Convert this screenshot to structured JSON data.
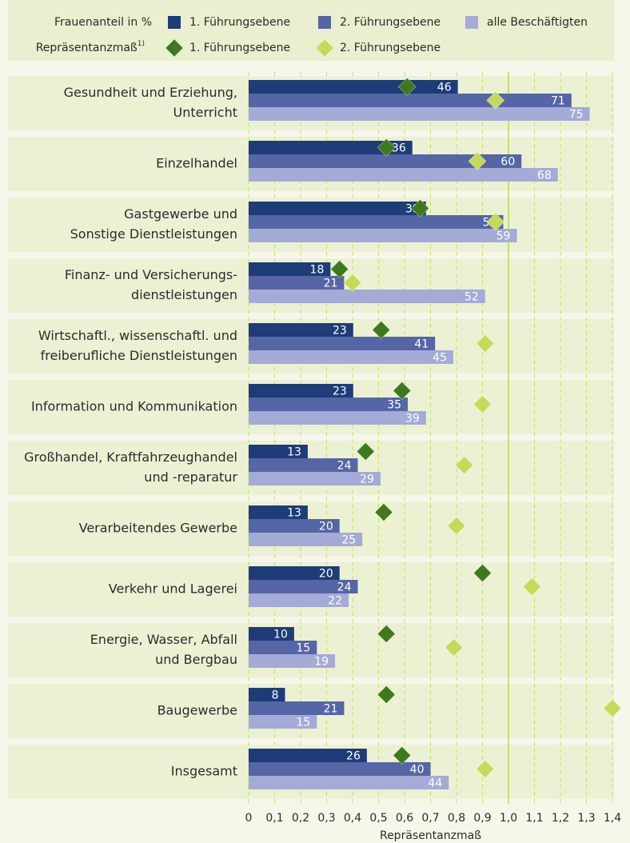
{
  "chart_data": {
    "type": "bar",
    "orientation": "horizontal",
    "legend_groups": [
      {
        "label": "Frauenanteil in %"
      },
      {
        "label": "Repräsentanzmaß",
        "note": "1)"
      }
    ],
    "categories": [
      [
        "Gesundheit und Erziehung,",
        "Unterricht"
      ],
      [
        "Einzelhandel"
      ],
      [
        "Gastgewerbe und",
        "Sonstige Dienstleistungen"
      ],
      [
        "Finanz- und Versicherungs-",
        "dienstleistungen"
      ],
      [
        "Wirtschaftl., wissenschaftl. und",
        "freiberufliche Dienstleistungen"
      ],
      [
        "Information und Kommunikation"
      ],
      [
        "Großhandel, Kraftfahrzeughandel",
        "und -reparatur"
      ],
      [
        "Verarbeitendes Gewerbe"
      ],
      [
        "Verkehr und Lagerei"
      ],
      [
        "Energie, Wasser, Abfall",
        "und Bergbau"
      ],
      [
        "Baugewerbe"
      ],
      [
        "Insgesamt"
      ]
    ],
    "series": [
      {
        "name": "1. Führungsebene",
        "color": "#1d3c78",
        "axis": "x2",
        "values": [
          46,
          36,
          39,
          18,
          23,
          23,
          13,
          13,
          20,
          10,
          8,
          26
        ]
      },
      {
        "name": "2. Führungsebene",
        "color": "#5565a6",
        "axis": "x2",
        "values": [
          71,
          60,
          56,
          21,
          41,
          35,
          24,
          20,
          24,
          15,
          21,
          40
        ]
      },
      {
        "name": "alle Beschäftigten",
        "color": "#a4abd6",
        "axis": "x2",
        "values": [
          75,
          68,
          59,
          52,
          45,
          39,
          29,
          25,
          22,
          19,
          15,
          44
        ]
      },
      {
        "name": "1. Führungsebene",
        "color": "#3e7a1c",
        "marker": "diamond",
        "values": [
          0.61,
          0.53,
          0.66,
          0.35,
          0.51,
          0.59,
          0.45,
          0.52,
          0.9,
          0.53,
          0.53,
          0.59
        ]
      },
      {
        "name": "2. Führungsebene",
        "color": "#c4db5a",
        "marker": "diamond",
        "values": [
          0.95,
          0.88,
          0.95,
          0.4,
          0.91,
          0.9,
          0.83,
          0.8,
          1.09,
          0.79,
          1.4,
          0.91
        ]
      }
    ],
    "xlabel": "Repräsentanzmaß",
    "xlim": [
      0,
      1.4
    ],
    "xticks": [
      0,
      {
        "value": 0.1,
        "label": "0,1"
      },
      {
        "value": 0.2,
        "label": "0,2"
      },
      {
        "value": 0.3,
        "label": "0,3"
      },
      {
        "value": 0.4,
        "label": "0,4"
      },
      {
        "value": 0.5,
        "label": "0,5"
      },
      {
        "value": 0.6,
        "label": "0,6"
      },
      {
        "value": 0.7,
        "label": "0,7"
      },
      {
        "value": 0.8,
        "label": "0,8"
      },
      {
        "value": 0.9,
        "label": "0,9"
      },
      {
        "value": 1.0,
        "label": "1,0"
      },
      {
        "value": 1.1,
        "label": "1,1"
      },
      {
        "value": 1.2,
        "label": "1,2"
      },
      {
        "value": 1.3,
        "label": "1,3"
      },
      {
        "value": 1.4,
        "label": "1,4"
      }
    ],
    "x2lim": [
      0,
      80
    ],
    "grid": true
  }
}
